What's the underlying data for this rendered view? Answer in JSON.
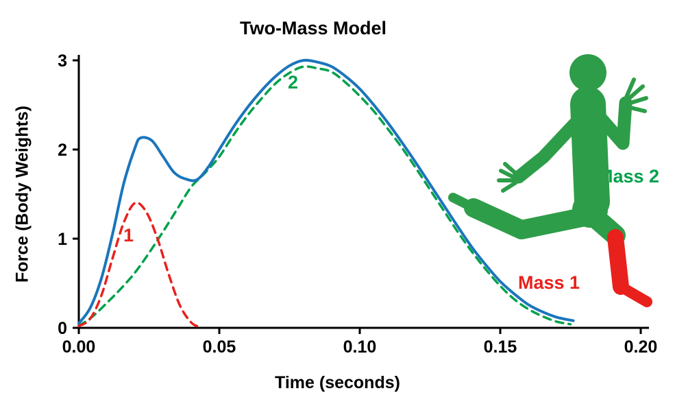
{
  "chart_data": {
    "type": "line",
    "title": "Two-Mass Model",
    "xlabel": "Time (seconds)",
    "ylabel": "Force (Body Weights)",
    "xlim": [
      0,
      0.2
    ],
    "ylim": [
      0,
      3
    ],
    "grid": false,
    "axis_color": "#000000",
    "xticks": {
      "values": [
        0,
        0.05,
        0.1,
        0.15,
        0.2
      ],
      "labels": [
        "0.00",
        "0.05",
        "0.10",
        "0.15",
        "0.20"
      ]
    },
    "yticks": {
      "values": [
        0,
        1,
        2,
        3
      ],
      "labels": [
        "0",
        "1",
        "2",
        "3"
      ]
    },
    "series": [
      {
        "id": "mass2-force",
        "name": "Mass 2 force (active peak)",
        "color": "#00a14b",
        "style": "dashed",
        "width": 3.5,
        "points": [
          [
            0,
            0.02
          ],
          [
            0.005,
            0.13
          ],
          [
            0.01,
            0.28
          ],
          [
            0.015,
            0.44
          ],
          [
            0.02,
            0.62
          ],
          [
            0.025,
            0.84
          ],
          [
            0.03,
            1.08
          ],
          [
            0.035,
            1.33
          ],
          [
            0.04,
            1.58
          ],
          [
            0.045,
            1.74
          ],
          [
            0.05,
            1.92
          ],
          [
            0.055,
            2.16
          ],
          [
            0.06,
            2.38
          ],
          [
            0.065,
            2.57
          ],
          [
            0.07,
            2.74
          ],
          [
            0.075,
            2.86
          ],
          [
            0.08,
            2.93
          ],
          [
            0.085,
            2.91
          ],
          [
            0.09,
            2.87
          ],
          [
            0.095,
            2.75
          ],
          [
            0.1,
            2.6
          ],
          [
            0.105,
            2.43
          ],
          [
            0.11,
            2.23
          ],
          [
            0.115,
            2.02
          ],
          [
            0.12,
            1.79
          ],
          [
            0.125,
            1.55
          ],
          [
            0.13,
            1.31
          ],
          [
            0.135,
            1.07
          ],
          [
            0.14,
            0.85
          ],
          [
            0.145,
            0.65
          ],
          [
            0.15,
            0.47
          ],
          [
            0.155,
            0.32
          ],
          [
            0.16,
            0.21
          ],
          [
            0.165,
            0.13
          ],
          [
            0.17,
            0.07
          ],
          [
            0.175,
            0.04
          ]
        ]
      },
      {
        "id": "mass1-force",
        "name": "Mass 1 force (impact peak)",
        "color": "#e8211d",
        "style": "dashed",
        "width": 3.5,
        "points": [
          [
            0,
            0.02
          ],
          [
            0.004,
            0.1
          ],
          [
            0.008,
            0.36
          ],
          [
            0.012,
            0.78
          ],
          [
            0.016,
            1.18
          ],
          [
            0.02,
            1.4
          ],
          [
            0.024,
            1.3
          ],
          [
            0.028,
            1.0
          ],
          [
            0.032,
            0.6
          ],
          [
            0.036,
            0.25
          ],
          [
            0.04,
            0.06
          ],
          [
            0.043,
            0.01
          ]
        ]
      },
      {
        "id": "total-force",
        "name": "Total ground reaction force",
        "color": "#1b75bc",
        "style": "solid",
        "width": 4,
        "points": [
          [
            0,
            0.05
          ],
          [
            0.004,
            0.22
          ],
          [
            0.008,
            0.55
          ],
          [
            0.012,
            1.05
          ],
          [
            0.016,
            1.62
          ],
          [
            0.02,
            2.02
          ],
          [
            0.022,
            2.13
          ],
          [
            0.026,
            2.1
          ],
          [
            0.03,
            1.92
          ],
          [
            0.034,
            1.74
          ],
          [
            0.038,
            1.67
          ],
          [
            0.042,
            1.66
          ],
          [
            0.046,
            1.8
          ],
          [
            0.05,
            2.0
          ],
          [
            0.055,
            2.25
          ],
          [
            0.06,
            2.47
          ],
          [
            0.065,
            2.66
          ],
          [
            0.07,
            2.82
          ],
          [
            0.075,
            2.94
          ],
          [
            0.08,
            3.0
          ],
          [
            0.085,
            2.98
          ],
          [
            0.09,
            2.93
          ],
          [
            0.095,
            2.82
          ],
          [
            0.1,
            2.68
          ],
          [
            0.105,
            2.5
          ],
          [
            0.11,
            2.3
          ],
          [
            0.115,
            2.08
          ],
          [
            0.12,
            1.85
          ],
          [
            0.125,
            1.61
          ],
          [
            0.13,
            1.37
          ],
          [
            0.135,
            1.13
          ],
          [
            0.14,
            0.9
          ],
          [
            0.145,
            0.7
          ],
          [
            0.15,
            0.52
          ],
          [
            0.155,
            0.38
          ],
          [
            0.16,
            0.26
          ],
          [
            0.165,
            0.18
          ],
          [
            0.17,
            0.12
          ],
          [
            0.176,
            0.08
          ]
        ]
      }
    ],
    "annotations": [
      {
        "text": "1",
        "color": "#e8211d",
        "refers_to": "mass1-force"
      },
      {
        "text": "2",
        "color": "#00a14b",
        "refers_to": "mass2-force"
      },
      {
        "text": "Mass 1",
        "color": "#e8211d",
        "refers_to": "runner-lower-leg"
      },
      {
        "text": "Mass 2",
        "color": "#00a14b",
        "refers_to": "runner-body"
      }
    ]
  },
  "figure": {
    "body_color": "#2e9d49",
    "boot_color": "#e8211d"
  }
}
